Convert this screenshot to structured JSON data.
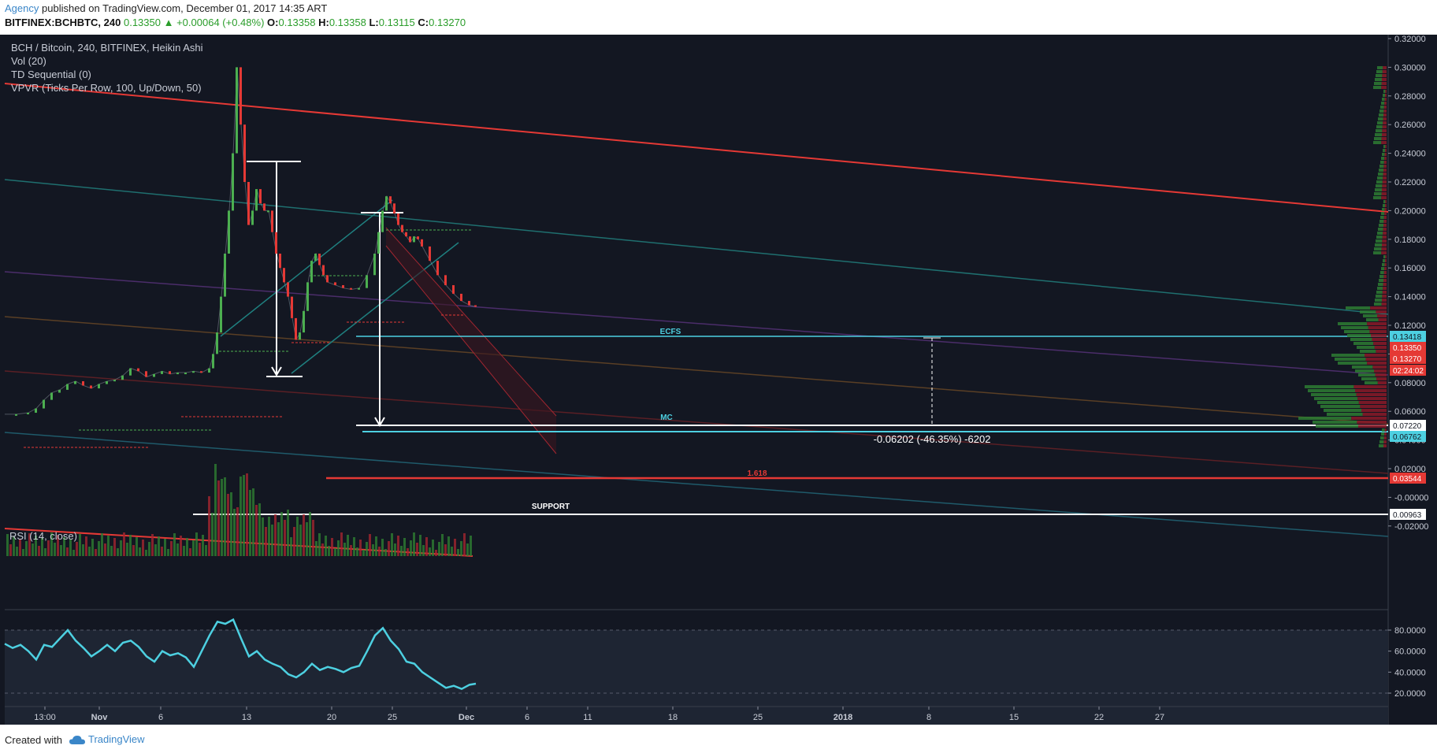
{
  "header": {
    "author": "Agency",
    "published_text": "published on TradingView.com, December 01, 2017 14:35 ART",
    "symbol_label": "BITFINEX:BCHBTC, 240",
    "last": "0.13350",
    "change": "▲ +0.00064 (+0.48%)",
    "open_label": "O:",
    "open": "0.13358",
    "high_label": "H:",
    "high": "0.13358",
    "low_label": "L:",
    "low": "0.13115",
    "close_label": "C:",
    "close": "0.13270"
  },
  "legend": {
    "title": "BCH / Bitcoin, 240, BITFINEX, Heikin Ashi",
    "vol": "Vol (20)",
    "td": "TD Sequential (0)",
    "vpvr": "VPVR (Ticks Per Row, 100, Up/Down, 50)",
    "rsi": "RSI (14, close)"
  },
  "colors": {
    "background": "#131722",
    "up": "#4caf50",
    "down": "#e53935",
    "rsi_line": "#4dd0e1",
    "trend_red": "#e53935",
    "ecfs": "#4dd0e1",
    "support": "#ffffff"
  },
  "chart_data": {
    "type": "line",
    "title": "BCH / Bitcoin, 240, BITFINEX, Heikin Ashi",
    "price_axis_ticks": [
      "0.32000",
      "0.30000",
      "0.28000",
      "0.26000",
      "0.24000",
      "0.22000",
      "0.20000",
      "0.18000",
      "0.16000",
      "0.14000",
      "0.12000",
      "0.10000",
      "0.08000",
      "0.06000",
      "0.04000",
      "0.02000",
      "-0.00000",
      "-0.02000"
    ],
    "price_markers": [
      {
        "value": "0.13418",
        "color": "#4dd0e1"
      },
      {
        "value": "0.13350",
        "color": "#e53935"
      },
      {
        "value": "0.13270",
        "color": "#e53935"
      },
      {
        "value": "02:24:02",
        "color": "#e53935"
      },
      {
        "value": "0.07220",
        "color": "#ffffff"
      },
      {
        "value": "0.06762",
        "color": "#4dd0e1"
      },
      {
        "value": "0.03544",
        "color": "#e53935"
      },
      {
        "value": "0.00963",
        "color": "#ffffff"
      }
    ],
    "rsi_axis_ticks": [
      "80.0000",
      "60.0000",
      "40.0000",
      "20.0000"
    ],
    "time_axis_ticks": [
      "13:00",
      "Nov",
      "6",
      "13",
      "20",
      "25",
      "Dec",
      "6",
      "11",
      "18",
      "25",
      "2018",
      "8",
      "15",
      "22",
      "27"
    ],
    "annotations": {
      "ecfs": "ECFS",
      "mc": "MC",
      "fib": "1.618",
      "support": "SUPPORT",
      "measure": "-0.06202 (-46.35%) -6202"
    },
    "price_series": [
      [
        0,
        0.058
      ],
      [
        15,
        0.058
      ],
      [
        30,
        0.059
      ],
      [
        40,
        0.062
      ],
      [
        50,
        0.068
      ],
      [
        60,
        0.073
      ],
      [
        70,
        0.075
      ],
      [
        80,
        0.079
      ],
      [
        90,
        0.081
      ],
      [
        100,
        0.078
      ],
      [
        110,
        0.076
      ],
      [
        120,
        0.079
      ],
      [
        130,
        0.081
      ],
      [
        140,
        0.082
      ],
      [
        150,
        0.085
      ],
      [
        160,
        0.09
      ],
      [
        170,
        0.088
      ],
      [
        180,
        0.084
      ],
      [
        190,
        0.086
      ],
      [
        200,
        0.088
      ],
      [
        210,
        0.086
      ],
      [
        220,
        0.087
      ],
      [
        230,
        0.087
      ],
      [
        240,
        0.088
      ],
      [
        250,
        0.087
      ],
      [
        260,
        0.09
      ],
      [
        265,
        0.1
      ],
      [
        270,
        0.115
      ],
      [
        275,
        0.14
      ],
      [
        280,
        0.17
      ],
      [
        285,
        0.2
      ],
      [
        290,
        0.24
      ],
      [
        295,
        0.3
      ],
      [
        300,
        0.26
      ],
      [
        305,
        0.22
      ],
      [
        310,
        0.19
      ],
      [
        315,
        0.2
      ],
      [
        320,
        0.215
      ],
      [
        325,
        0.205
      ],
      [
        330,
        0.2
      ],
      [
        335,
        0.2
      ],
      [
        340,
        0.185
      ],
      [
        345,
        0.17
      ],
      [
        350,
        0.16
      ],
      [
        355,
        0.15
      ],
      [
        360,
        0.14
      ],
      [
        365,
        0.125
      ],
      [
        370,
        0.11
      ],
      [
        375,
        0.115
      ],
      [
        380,
        0.13
      ],
      [
        385,
        0.15
      ],
      [
        390,
        0.165
      ],
      [
        395,
        0.17
      ],
      [
        400,
        0.162
      ],
      [
        405,
        0.155
      ],
      [
        410,
        0.15
      ],
      [
        420,
        0.148
      ],
      [
        430,
        0.146
      ],
      [
        440,
        0.145
      ],
      [
        450,
        0.146
      ],
      [
        460,
        0.155
      ],
      [
        470,
        0.17
      ],
      [
        475,
        0.185
      ],
      [
        480,
        0.2
      ],
      [
        485,
        0.21
      ],
      [
        490,
        0.205
      ],
      [
        495,
        0.198
      ],
      [
        500,
        0.19
      ],
      [
        505,
        0.185
      ],
      [
        510,
        0.182
      ],
      [
        515,
        0.178
      ],
      [
        520,
        0.182
      ],
      [
        525,
        0.18
      ],
      [
        530,
        0.175
      ],
      [
        540,
        0.165
      ],
      [
        550,
        0.155
      ],
      [
        560,
        0.148
      ],
      [
        570,
        0.142
      ],
      [
        580,
        0.137
      ],
      [
        590,
        0.134
      ],
      [
        598,
        0.133
      ]
    ],
    "rsi_series": [
      [
        0,
        67
      ],
      [
        10,
        63
      ],
      [
        20,
        66
      ],
      [
        30,
        60
      ],
      [
        40,
        52
      ],
      [
        50,
        66
      ],
      [
        60,
        64
      ],
      [
        70,
        72
      ],
      [
        80,
        80
      ],
      [
        90,
        70
      ],
      [
        100,
        63
      ],
      [
        110,
        55
      ],
      [
        120,
        60
      ],
      [
        130,
        66
      ],
      [
        140,
        60
      ],
      [
        150,
        68
      ],
      [
        160,
        70
      ],
      [
        170,
        64
      ],
      [
        180,
        55
      ],
      [
        190,
        50
      ],
      [
        200,
        60
      ],
      [
        210,
        56
      ],
      [
        220,
        58
      ],
      [
        230,
        54
      ],
      [
        240,
        45
      ],
      [
        250,
        60
      ],
      [
        260,
        75
      ],
      [
        270,
        88
      ],
      [
        280,
        86
      ],
      [
        290,
        90
      ],
      [
        300,
        72
      ],
      [
        310,
        55
      ],
      [
        320,
        60
      ],
      [
        330,
        52
      ],
      [
        340,
        48
      ],
      [
        350,
        45
      ],
      [
        360,
        38
      ],
      [
        370,
        35
      ],
      [
        380,
        40
      ],
      [
        390,
        48
      ],
      [
        400,
        42
      ],
      [
        410,
        45
      ],
      [
        420,
        43
      ],
      [
        430,
        40
      ],
      [
        440,
        44
      ],
      [
        450,
        46
      ],
      [
        460,
        60
      ],
      [
        470,
        75
      ],
      [
        480,
        82
      ],
      [
        490,
        70
      ],
      [
        500,
        62
      ],
      [
        510,
        50
      ],
      [
        520,
        48
      ],
      [
        530,
        40
      ],
      [
        540,
        35
      ],
      [
        550,
        30
      ],
      [
        560,
        25
      ],
      [
        570,
        27
      ],
      [
        580,
        24
      ],
      [
        590,
        28
      ],
      [
        598,
        29
      ]
    ]
  },
  "footer": {
    "created_with": "Created with",
    "brand": "TradingView"
  }
}
